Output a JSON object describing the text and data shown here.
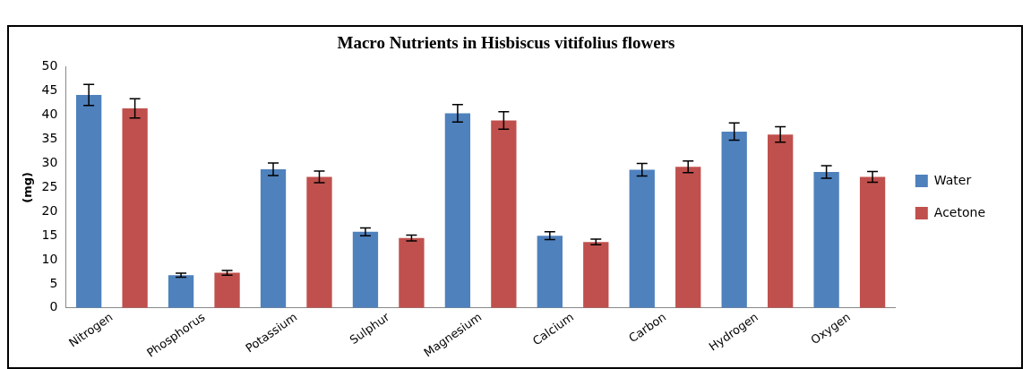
{
  "chart_data": {
    "type": "bar",
    "title": "Macro Nutrients in Hisbiscus vitifolius flowers",
    "ylabel": "(mg)",
    "categories": [
      "Nitrogen",
      "Phosphorus",
      "Potassium",
      "Sulphur",
      "Magnesium",
      "Calcium",
      "Carbon",
      "Hydrogen",
      "Oxygen"
    ],
    "series": [
      {
        "name": "Water",
        "color": "#4f81bd",
        "values": [
          44.2,
          6.8,
          28.8,
          15.8,
          40.4,
          15.0,
          28.7,
          36.6,
          28.2
        ],
        "errors": [
          2.2,
          0.4,
          1.3,
          0.8,
          1.8,
          0.8,
          1.3,
          1.8,
          1.3
        ]
      },
      {
        "name": "Acetone",
        "color": "#c0504d",
        "values": [
          41.4,
          7.3,
          27.2,
          14.5,
          38.9,
          13.7,
          29.3,
          36.0,
          27.2
        ],
        "errors": [
          2.0,
          0.5,
          1.2,
          0.6,
          1.8,
          0.6,
          1.2,
          1.6,
          1.1
        ]
      }
    ],
    "ylim": [
      0,
      50
    ],
    "yticks": [
      0,
      5,
      10,
      15,
      20,
      25,
      30,
      35,
      40,
      45,
      50
    ],
    "grid": false,
    "legend": "right"
  }
}
